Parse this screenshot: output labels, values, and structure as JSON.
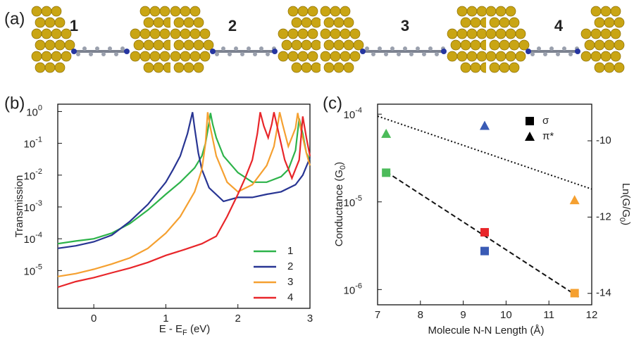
{
  "panel_labels": [
    "(a)",
    "(b)",
    "(c)"
  ],
  "molecules": [
    {
      "label": "1",
      "color": "#1e9a3c"
    },
    {
      "label": "2",
      "color": "#3a64b0"
    },
    {
      "label": "3",
      "color": "#f5b800"
    },
    {
      "label": "4",
      "color": "#e02424"
    }
  ],
  "chart_data": [
    {
      "type": "line",
      "ylabel": "Transmission",
      "xlabel_parts": [
        "E - E",
        "F",
        " (eV)"
      ],
      "xlim": [
        -0.5,
        3
      ],
      "xticks": [
        0,
        1,
        2,
        3
      ],
      "ylim": [
        6.5e-07,
        1.7
      ],
      "log_y": true,
      "yticks": [
        {
          "value": 1,
          "label": "10",
          "exponent": "0"
        },
        {
          "value": 0.1,
          "label": "10",
          "exponent": "-1"
        },
        {
          "value": 0.01,
          "label": "10",
          "exponent": "-2"
        },
        {
          "value": 0.001,
          "label": "10",
          "exponent": "-3"
        },
        {
          "value": 0.0001,
          "label": "10",
          "exponent": "-4"
        },
        {
          "value": 1e-05,
          "label": "10",
          "exponent": "-5"
        }
      ],
      "legend": "lower right",
      "series": [
        {
          "name": "1",
          "color": "#2db34a",
          "x": [
            -0.5,
            -0.25,
            0,
            0.25,
            0.5,
            0.75,
            1,
            1.2,
            1.4,
            1.5,
            1.55,
            1.6,
            1.62,
            1.65,
            1.7,
            1.8,
            2,
            2.2,
            2.4,
            2.6,
            2.7,
            2.8,
            2.85,
            2.9,
            2.95,
            3
          ],
          "values": [
            7e-05,
            8.5e-05,
            0.0001,
            0.00015,
            0.0003,
            0.0008,
            0.0025,
            0.006,
            0.017,
            0.04,
            0.1,
            0.45,
            0.9,
            0.4,
            0.15,
            0.04,
            0.012,
            0.006,
            0.006,
            0.009,
            0.015,
            0.06,
            0.6,
            0.2,
            0.05,
            0.03
          ]
        },
        {
          "name": "2",
          "color": "#283593",
          "x": [
            -0.5,
            -0.25,
            0,
            0.25,
            0.5,
            0.75,
            1,
            1.1,
            1.2,
            1.3,
            1.35,
            1.37,
            1.4,
            1.45,
            1.5,
            1.6,
            1.8,
            2,
            2.2,
            2.4,
            2.6,
            2.8,
            2.9,
            3
          ],
          "values": [
            5e-05,
            6e-05,
            8e-05,
            0.00013,
            0.00035,
            0.0012,
            0.006,
            0.015,
            0.04,
            0.2,
            0.6,
            0.95,
            0.3,
            0.05,
            0.015,
            0.004,
            0.0015,
            0.002,
            0.002,
            0.0025,
            0.003,
            0.005,
            0.01,
            0.035
          ]
        },
        {
          "name": "3",
          "color": "#f5a030",
          "x": [
            -0.5,
            -0.25,
            0,
            0.25,
            0.5,
            0.75,
            1,
            1.2,
            1.4,
            1.5,
            1.55,
            1.58,
            1.62,
            1.7,
            1.85,
            2,
            2.2,
            2.4,
            2.5,
            2.55,
            2.58,
            2.62,
            2.7,
            2.8,
            2.83,
            2.87,
            2.95,
            3
          ],
          "values": [
            6.5e-06,
            8e-06,
            1.1e-05,
            1.6e-05,
            2.5e-05,
            5e-05,
            0.00015,
            0.0005,
            0.003,
            0.015,
            0.1,
            0.95,
            0.3,
            0.04,
            0.006,
            0.003,
            0.005,
            0.02,
            0.08,
            0.35,
            0.95,
            0.4,
            0.08,
            0.3,
            0.9,
            0.3,
            0.05,
            0.02
          ]
        },
        {
          "name": "4",
          "color": "#e8262a",
          "x": [
            -0.5,
            -0.25,
            0,
            0.25,
            0.5,
            0.75,
            1,
            1.25,
            1.5,
            1.7,
            1.85,
            2,
            2.1,
            2.2,
            2.27,
            2.31,
            2.36,
            2.42,
            2.47,
            2.5,
            2.55,
            2.65,
            2.75,
            2.85,
            2.9,
            2.95,
            3
          ],
          "values": [
            3e-06,
            4.5e-06,
            6e-06,
            8.5e-06,
            1.2e-05,
            1.8e-05,
            3e-05,
            4.5e-05,
            7e-05,
            0.00012,
            0.0005,
            0.0025,
            0.008,
            0.03,
            0.2,
            0.95,
            0.35,
            0.15,
            0.4,
            0.95,
            0.3,
            0.03,
            0.008,
            0.03,
            0.7,
            0.15,
            0.04
          ]
        }
      ]
    },
    {
      "type": "scatter",
      "xlabel": "Molecule N-N Length (Å)",
      "ylabel_parts": [
        "Conductance (G",
        "0",
        ")"
      ],
      "y2label_parts": [
        "Ln(G/G",
        "0",
        ")"
      ],
      "xlim": [
        7,
        12
      ],
      "xticks": [
        7,
        8,
        9,
        10,
        11,
        12
      ],
      "ylim": [
        6.7e-07,
        0.00013
      ],
      "log_y": true,
      "yticks": [
        {
          "value": 0.0001,
          "label": "10",
          "exponent": "-4"
        },
        {
          "value": 1e-05,
          "label": "10",
          "exponent": "-5"
        },
        {
          "value": 1e-06,
          "label": "10",
          "exponent": "-6"
        }
      ],
      "y2lim": [
        -14.3,
        -9.04
      ],
      "y2ticks": [
        -10,
        -12,
        -14
      ],
      "legend": "upper right",
      "series": [
        {
          "name": "σ",
          "marker": "square",
          "color": "#000000",
          "x": [
            7.2,
            9.5,
            9.5,
            11.6
          ],
          "values": [
            2.15e-05,
            4.5e-06,
            2.75e-06,
            9.1e-07
          ],
          "point_colors": [
            "#4cbb5a",
            "#e8262a",
            "#3a5bb5",
            "#f5a030"
          ]
        },
        {
          "name": "π*",
          "marker": "triangle",
          "color": "#000000",
          "x": [
            7.2,
            9.5,
            11.6
          ],
          "values": [
            6e-05,
            7.4e-05,
            1.05e-05
          ],
          "point_colors": [
            "#4cbb5a",
            "#3a5bb5",
            "#f5a030"
          ]
        }
      ],
      "fits": [
        {
          "style": "dotted",
          "x": [
            7,
            12
          ],
          "values": [
            9.5e-05,
            1.4e-05
          ]
        },
        {
          "style": "dashed",
          "x": [
            7.2,
            11.7
          ],
          "values": [
            2.2e-05,
            8.2e-07
          ]
        }
      ]
    }
  ]
}
